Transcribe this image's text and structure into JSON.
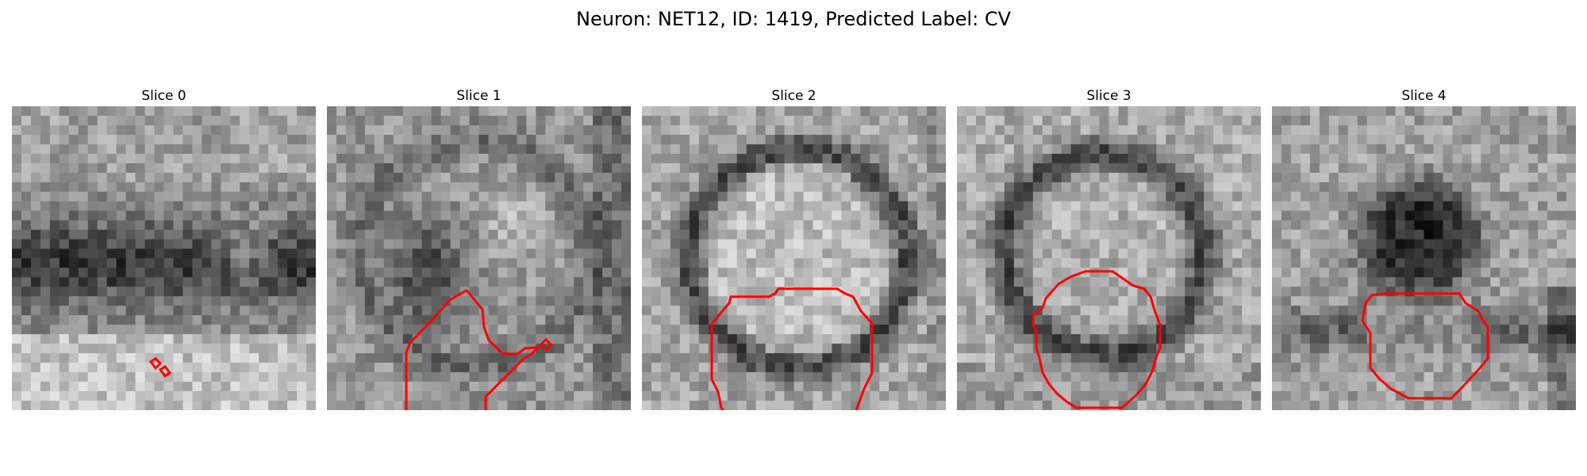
{
  "figure": {
    "title": "Neuron: NET12, ID: 1419, Predicted Label: CV",
    "contour_color": "#ff0000",
    "slices": [
      {
        "title": "Slice 0"
      },
      {
        "title": "Slice 1"
      },
      {
        "title": "Slice 2"
      },
      {
        "title": "Slice 3"
      },
      {
        "title": "Slice 4"
      }
    ]
  }
}
